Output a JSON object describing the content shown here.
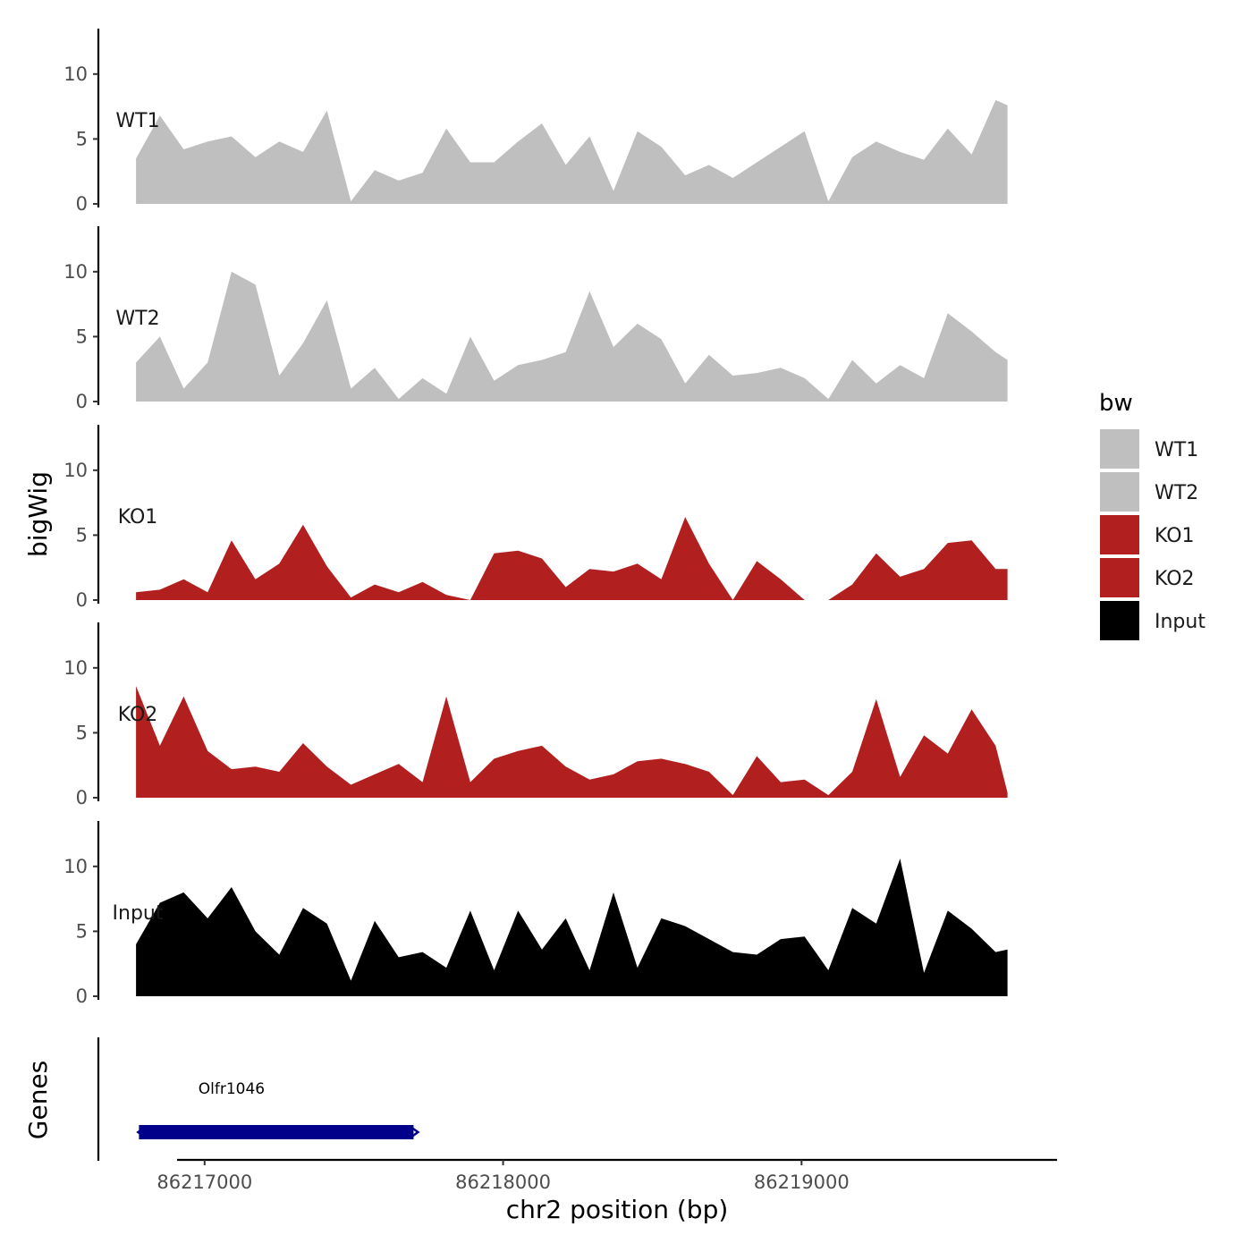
{
  "chart_data": {
    "type": "area",
    "ylabel": "bigWig",
    "xlabel": "chr2 position (bp)",
    "xlim": [
      86216650,
      86219850
    ],
    "ylim": [
      0,
      13.5
    ],
    "yticks": [
      0,
      5,
      10
    ],
    "xticks": [
      86217000,
      86218000,
      86219000
    ],
    "legend": {
      "title": "bw",
      "position": "right",
      "entries": [
        {
          "label": "WT1",
          "color": "#bfbfbf"
        },
        {
          "label": "WT2",
          "color": "#bfbfbf"
        },
        {
          "label": "KO1",
          "color": "#b21f1f"
        },
        {
          "label": "KO2",
          "color": "#b21f1f"
        },
        {
          "label": "Input",
          "color": "#000000"
        }
      ]
    },
    "x": [
      86216770,
      86216850,
      86216930,
      86217010,
      86217090,
      86217170,
      86217250,
      86217330,
      86217410,
      86217490,
      86217570,
      86217650,
      86217730,
      86217810,
      86217890,
      86217970,
      86218050,
      86218130,
      86218210,
      86218290,
      86218370,
      86218450,
      86218530,
      86218610,
      86218690,
      86218770,
      86218850,
      86218930,
      86219010,
      86219090,
      86219170,
      86219250,
      86219330,
      86219410,
      86219490,
      86219570,
      86219650,
      86219690
    ],
    "series": [
      {
        "name": "WT1",
        "color": "#bfbfbf",
        "values": [
          3.5,
          6.8,
          4.2,
          4.8,
          5.2,
          3.6,
          4.8,
          4.0,
          7.2,
          0.2,
          2.6,
          1.8,
          2.4,
          5.8,
          3.2,
          3.2,
          4.8,
          6.2,
          3.0,
          5.2,
          1.0,
          5.6,
          4.4,
          2.2,
          3.0,
          2.0,
          3.2,
          4.4,
          5.6,
          0.2,
          3.6,
          4.8,
          4.0,
          3.4,
          5.8,
          3.8,
          8.0,
          7.6
        ]
      },
      {
        "name": "WT2",
        "color": "#bfbfbf",
        "values": [
          3.0,
          5.0,
          1.0,
          3.0,
          10.0,
          9.0,
          2.0,
          4.5,
          7.8,
          1.0,
          2.6,
          0.2,
          1.8,
          0.6,
          5.0,
          1.6,
          2.8,
          3.2,
          3.8,
          8.5,
          4.2,
          6.0,
          4.8,
          1.4,
          3.6,
          2.0,
          2.2,
          2.6,
          1.8,
          0.2,
          3.2,
          1.4,
          2.8,
          1.8,
          6.8,
          5.4,
          3.8,
          3.2
        ]
      },
      {
        "name": "KO1",
        "color": "#b21f1f",
        "values": [
          0.6,
          0.8,
          1.6,
          0.6,
          4.6,
          1.6,
          2.8,
          5.8,
          2.6,
          0.2,
          1.2,
          0.6,
          1.4,
          0.4,
          0.0,
          3.6,
          3.8,
          3.2,
          1.0,
          2.4,
          2.2,
          2.8,
          1.6,
          6.4,
          2.8,
          0.0,
          3.0,
          1.6,
          0.0,
          0.0,
          1.2,
          3.6,
          1.8,
          2.4,
          4.4,
          4.6,
          2.4,
          2.4
        ]
      },
      {
        "name": "KO2",
        "color": "#b21f1f",
        "values": [
          8.6,
          4.0,
          7.8,
          3.6,
          2.2,
          2.4,
          2.0,
          4.2,
          2.4,
          1.0,
          1.8,
          2.6,
          1.2,
          7.8,
          1.2,
          3.0,
          3.6,
          4.0,
          2.4,
          1.4,
          1.8,
          2.8,
          3.0,
          2.6,
          2.0,
          0.2,
          3.2,
          1.2,
          1.4,
          0.2,
          2.0,
          7.6,
          1.6,
          4.8,
          3.4,
          6.8,
          4.0,
          0.4
        ]
      },
      {
        "name": "Input",
        "color": "#000000",
        "values": [
          4.0,
          7.2,
          8.0,
          6.0,
          8.4,
          5.0,
          3.2,
          6.8,
          5.6,
          1.2,
          5.8,
          3.0,
          3.4,
          2.2,
          6.6,
          2.0,
          6.6,
          3.6,
          6.0,
          2.0,
          8.0,
          2.2,
          6.0,
          5.4,
          4.4,
          3.4,
          3.2,
          4.4,
          4.6,
          2.0,
          6.8,
          5.6,
          10.6,
          1.8,
          6.6,
          5.2,
          3.4,
          3.6
        ]
      }
    ],
    "gene_track": {
      "ylabel": "Genes",
      "genes": [
        {
          "name": "Olfr1046",
          "start": 86216780,
          "end": 86217700,
          "color": "#00008b"
        }
      ]
    }
  }
}
